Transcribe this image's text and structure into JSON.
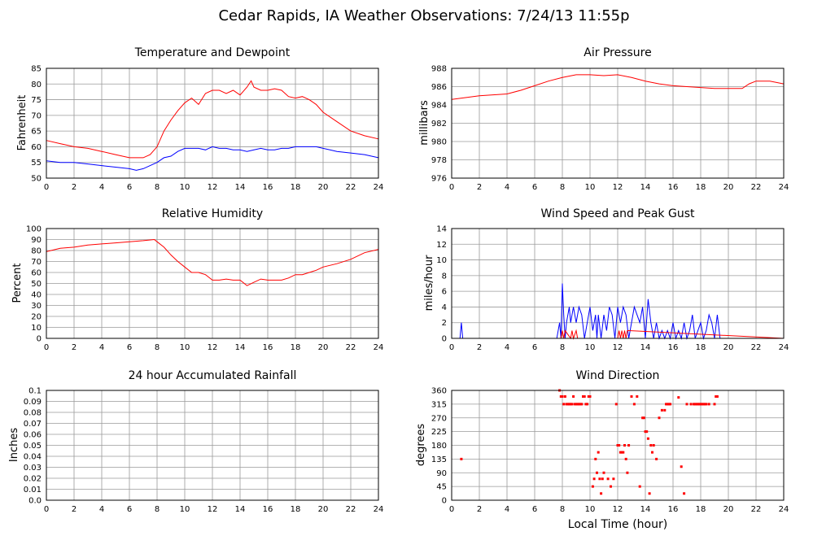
{
  "page": {
    "title": "Cedar Rapids, IA Weather Observations: 7/24/13 11:55p",
    "x_axis_label": "Local Time (hour)"
  },
  "chart_data": [
    {
      "id": "temp",
      "type": "line",
      "title": "Temperature and Dewpoint",
      "xlabel": "",
      "ylabel": "Fahrenheit",
      "xlim": [
        0,
        24
      ],
      "ylim": [
        50,
        85
      ],
      "x_ticks": [
        0,
        2,
        4,
        6,
        8,
        10,
        12,
        14,
        16,
        18,
        20,
        22,
        24
      ],
      "y_ticks": [
        50,
        55,
        60,
        65,
        70,
        75,
        80,
        85
      ],
      "grid": true,
      "series": [
        {
          "color": "#ff0000",
          "x": [
            0,
            1,
            2,
            3,
            4,
            5,
            6,
            7,
            7.5,
            8,
            8.5,
            9,
            9.5,
            10,
            10.5,
            11,
            11.5,
            12,
            12.5,
            13,
            13.5,
            14,
            14.5,
            14.8,
            15,
            15.5,
            16,
            16.5,
            17,
            17.5,
            18,
            18.5,
            19,
            19.5,
            20,
            21,
            22,
            23,
            24
          ],
          "y": [
            62,
            61,
            60,
            59.5,
            58.5,
            57.5,
            56.5,
            56.5,
            57.5,
            60,
            65,
            68.5,
            71.5,
            74,
            75.5,
            73.5,
            77,
            78,
            78,
            77,
            78,
            76.5,
            79,
            81,
            79,
            78,
            78,
            78.5,
            78,
            76,
            75.5,
            76,
            75,
            73.5,
            71,
            68,
            65,
            63.5,
            62.5
          ]
        },
        {
          "color": "#0000ff",
          "x": [
            0,
            1,
            2,
            3,
            4,
            5,
            6,
            6.5,
            7,
            7.5,
            8,
            8.5,
            9,
            9.5,
            10,
            10.5,
            11,
            11.5,
            12,
            12.5,
            13,
            13.5,
            14,
            14.5,
            15,
            15.5,
            16,
            16.5,
            17,
            17.5,
            18,
            18.5,
            19,
            19.5,
            20,
            20.5,
            21,
            22,
            23,
            24
          ],
          "y": [
            55.5,
            55,
            55,
            54.5,
            54,
            53.5,
            53,
            52.5,
            53,
            54,
            55,
            56.5,
            57,
            58.5,
            59.5,
            59.5,
            59.5,
            59,
            60,
            59.5,
            59.5,
            59,
            59,
            58.5,
            59,
            59.5,
            59,
            59,
            59.5,
            59.5,
            60,
            60,
            60,
            60,
            59.5,
            59,
            58.5,
            58,
            57.5,
            56.5
          ]
        }
      ]
    },
    {
      "id": "pressure",
      "type": "line",
      "title": "Air Pressure",
      "xlabel": "",
      "ylabel": "millibars",
      "xlim": [
        0,
        24
      ],
      "ylim": [
        976,
        988
      ],
      "x_ticks": [
        0,
        2,
        4,
        6,
        8,
        10,
        12,
        14,
        16,
        18,
        20,
        22,
        24
      ],
      "y_ticks": [
        976,
        978,
        980,
        982,
        984,
        986,
        988
      ],
      "grid": true,
      "series": [
        {
          "color": "#ff0000",
          "x": [
            0,
            1,
            2,
            3,
            4,
            5,
            6,
            7,
            8,
            9,
            10,
            11,
            12,
            13,
            14,
            15,
            16,
            17,
            18,
            19,
            20,
            21,
            21.5,
            22,
            23,
            24
          ],
          "y": [
            984.6,
            984.8,
            985,
            985.1,
            985.2,
            985.6,
            986.1,
            986.6,
            987,
            987.3,
            987.3,
            987.2,
            987.3,
            987,
            986.6,
            986.3,
            986.1,
            986,
            985.9,
            985.8,
            985.8,
            985.8,
            986.3,
            986.6,
            986.6,
            986.3
          ]
        }
      ]
    },
    {
      "id": "rh",
      "type": "line",
      "title": "Relative Humidity",
      "xlabel": "",
      "ylabel": "Percent",
      "xlim": [
        0,
        24
      ],
      "ylim": [
        0,
        100
      ],
      "x_ticks": [
        0,
        2,
        4,
        6,
        8,
        10,
        12,
        14,
        16,
        18,
        20,
        22,
        24
      ],
      "y_ticks": [
        0,
        10,
        20,
        30,
        40,
        50,
        60,
        70,
        80,
        90,
        100
      ],
      "grid": true,
      "series": [
        {
          "color": "#ff0000",
          "x": [
            0,
            1,
            2,
            3,
            4,
            5,
            6,
            7,
            7.8,
            8,
            8.5,
            9,
            9.5,
            10,
            10.5,
            11,
            11.5,
            12,
            12.5,
            13,
            13.5,
            14,
            14.5,
            15,
            15.5,
            16,
            16.5,
            17,
            17.5,
            18,
            18.5,
            19,
            19.5,
            20,
            21,
            22,
            23,
            24
          ],
          "y": [
            79,
            82,
            83,
            85,
            86,
            87,
            88,
            89,
            90,
            88,
            83,
            76,
            70,
            65,
            60,
            60,
            58,
            53,
            53,
            54,
            53,
            53,
            48,
            51,
            54,
            53,
            53,
            53,
            55,
            58,
            58,
            60,
            62,
            65,
            68,
            72,
            78,
            81
          ]
        }
      ]
    },
    {
      "id": "wind",
      "type": "line",
      "title": "Wind Speed and Peak Gust",
      "xlabel": "",
      "ylabel": "miles/hour",
      "xlim": [
        0,
        24
      ],
      "ylim": [
        0,
        14
      ],
      "x_ticks": [
        0,
        2,
        4,
        6,
        8,
        10,
        12,
        14,
        16,
        18,
        20,
        22,
        24
      ],
      "y_ticks": [
        0,
        2,
        4,
        6,
        8,
        10,
        12,
        14
      ],
      "grid": true,
      "series": [
        {
          "color": "#0000ff",
          "x": [
            0,
            0.6,
            0.7,
            0.8,
            7.6,
            7.8,
            7.9,
            8.0,
            8.1,
            8.2,
            8.3,
            8.5,
            8.6,
            8.8,
            9.0,
            9.2,
            9.4,
            9.6,
            9.8,
            10.0,
            10.2,
            10.4,
            10.5,
            10.6,
            10.8,
            11.0,
            11.2,
            11.4,
            11.6,
            11.8,
            12.0,
            12.2,
            12.4,
            12.6,
            12.8,
            13.0,
            13.2,
            13.4,
            13.6,
            13.8,
            14.0,
            14.2,
            14.4,
            14.6,
            14.8,
            15.0,
            15.2,
            15.4,
            15.6,
            15.8,
            16.0,
            16.2,
            16.4,
            16.6,
            16.8,
            17.0,
            17.2,
            17.4,
            17.6,
            17.8,
            18.0,
            18.2,
            18.4,
            18.6,
            18.8,
            19.0,
            19.2,
            19.4,
            24
          ],
          "y": [
            0,
            0,
            2,
            0,
            0,
            2,
            0,
            7,
            3,
            0,
            2,
            4,
            2,
            4,
            2,
            4,
            3,
            0,
            2,
            4,
            1,
            3,
            0,
            3,
            0,
            3,
            1,
            4,
            3,
            0,
            4,
            2,
            4,
            3,
            0,
            2,
            4,
            3,
            2,
            4,
            0,
            5,
            2,
            0,
            2,
            0,
            1,
            0,
            1,
            0,
            2,
            0,
            1,
            0,
            2,
            0,
            1,
            3,
            0,
            1,
            2,
            0,
            1,
            3,
            2,
            0,
            3,
            0,
            0
          ]
        },
        {
          "color": "#ff0000",
          "x": [
            0,
            7.9,
            8.0,
            8.1,
            8.2,
            8.6,
            8.7,
            8.8,
            9.0,
            9.1,
            9.2,
            12.0,
            12.1,
            12.2,
            12.3,
            12.4,
            12.5,
            12.6,
            12.7,
            24
          ],
          "y": [
            0,
            0,
            1,
            0,
            1,
            0,
            1,
            0,
            1,
            0,
            0,
            0,
            1,
            0,
            1,
            0,
            1,
            0,
            1,
            0
          ]
        }
      ]
    },
    {
      "id": "rain",
      "type": "line",
      "title": "24 hour Accumulated Rainfall",
      "xlabel": "",
      "ylabel": "Inches",
      "xlim": [
        0,
        24
      ],
      "ylim": [
        0,
        0.1
      ],
      "x_ticks": [
        0,
        2,
        4,
        6,
        8,
        10,
        12,
        14,
        16,
        18,
        20,
        22,
        24
      ],
      "y_ticks": [
        "0.0",
        "0.01",
        "0.02",
        "0.03",
        "0.04",
        "0.05",
        "0.06",
        "0.07",
        "0.08",
        "0.09",
        "0.1"
      ],
      "grid": true,
      "series": [
        {
          "color": "#ff0000",
          "x": [
            0,
            24
          ],
          "y": [
            0,
            0
          ]
        }
      ]
    },
    {
      "id": "direction",
      "type": "scatter",
      "title": "Wind Direction",
      "xlabel": "Local Time (hour)",
      "ylabel": "degrees",
      "xlim": [
        0,
        24
      ],
      "ylim": [
        0,
        360
      ],
      "x_ticks": [
        0,
        2,
        4,
        6,
        8,
        10,
        12,
        14,
        16,
        18,
        20,
        22,
        24
      ],
      "y_ticks": [
        0,
        45,
        90,
        135,
        180,
        225,
        270,
        315,
        360
      ],
      "grid": true,
      "series": [
        {
          "color": "#ff0000",
          "x": [
            0.7,
            7.8,
            7.9,
            8.0,
            8.1,
            8.2,
            8.3,
            8.4,
            8.5,
            8.6,
            8.7,
            8.8,
            8.9,
            9.0,
            9.1,
            9.2,
            9.3,
            9.4,
            9.5,
            9.6,
            9.7,
            9.8,
            9.9,
            10.0,
            10.2,
            10.3,
            10.4,
            10.5,
            10.6,
            10.7,
            10.8,
            10.9,
            11.0,
            11.3,
            11.5,
            11.7,
            11.9,
            12.0,
            12.1,
            12.2,
            12.3,
            12.4,
            12.5,
            12.6,
            12.7,
            12.8,
            13.0,
            13.2,
            13.4,
            13.6,
            13.8,
            13.9,
            14.0,
            14.1,
            14.2,
            14.3,
            14.4,
            14.5,
            14.6,
            14.8,
            15.0,
            15.2,
            15.4,
            15.5,
            15.6,
            15.7,
            15.8,
            16.4,
            16.6,
            16.8,
            17.0,
            17.3,
            17.5,
            17.6,
            17.7,
            17.8,
            17.9,
            18.0,
            18.1,
            18.2,
            18.3,
            18.4,
            18.6,
            19.0,
            19.1,
            19.2
          ],
          "y": [
            135,
            360,
            340,
            340,
            315,
            340,
            315,
            315,
            315,
            315,
            315,
            340,
            315,
            315,
            315,
            315,
            315,
            315,
            340,
            340,
            315,
            315,
            340,
            340,
            45,
            70,
            135,
            90,
            157,
            70,
            22,
            70,
            90,
            70,
            45,
            70,
            315,
            180,
            180,
            157,
            157,
            157,
            180,
            135,
            90,
            180,
            340,
            315,
            340,
            45,
            270,
            270,
            225,
            225,
            202,
            22,
            180,
            157,
            180,
            135,
            270,
            295,
            295,
            315,
            315,
            315,
            315,
            337,
            110,
            22,
            315,
            315,
            315,
            315,
            315,
            315,
            315,
            315,
            315,
            315,
            315,
            315,
            315,
            315,
            340,
            340
          ]
        }
      ]
    }
  ]
}
